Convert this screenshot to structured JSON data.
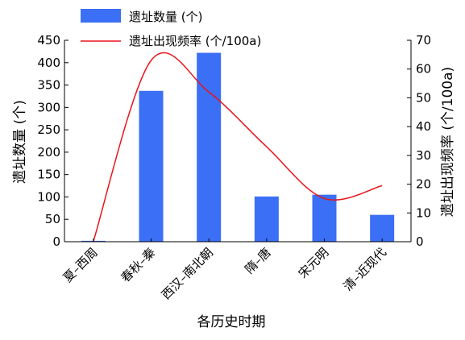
{
  "chart_data": {
    "type": "bar",
    "categories": [
      "夏–西周",
      "春秋–秦",
      "西汉–南北朝",
      "隋–唐",
      "宋元明",
      "清–近现代"
    ],
    "xlabel": "各历史时期",
    "ylabel": "遗址数量 (个)",
    "y2label": "遗址出现频率 (个/100a)",
    "ylim": [
      0,
      450
    ],
    "y2lim": [
      0,
      70
    ],
    "yticks": [
      0,
      50,
      100,
      150,
      200,
      250,
      300,
      350,
      400,
      450
    ],
    "y2ticks": [
      0,
      10,
      20,
      30,
      40,
      50,
      60,
      70
    ],
    "series": [
      {
        "name": "遗址数量 (个)",
        "type": "bar",
        "axis": "left",
        "color": "#3b6ff5",
        "values": [
          2,
          337,
          422,
          101,
          105,
          60
        ]
      },
      {
        "name": "遗址出现频率 (个/100a)",
        "type": "line",
        "axis": "right",
        "color": "#e8141b",
        "values": [
          0.1,
          63,
          52,
          33,
          15,
          19.5
        ]
      }
    ],
    "legend": "top-left",
    "grid": false
  }
}
